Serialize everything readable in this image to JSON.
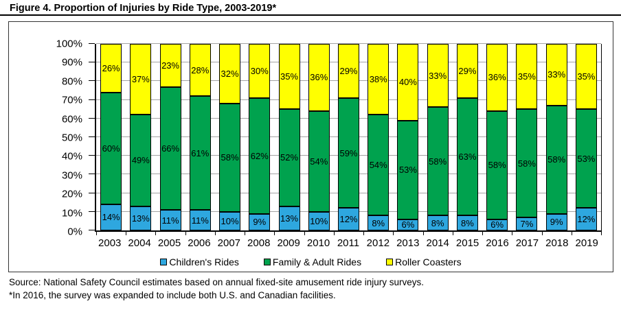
{
  "title": "Figure 4. Proportion of Injuries by Ride Type, 2003-2019*",
  "footer": {
    "source": "Source: National Safety Council estimates based on annual fixed-site amusement ride injury surveys.",
    "footnote": "*In 2016, the survey was expanded to include both U.S. and Canadian facilities."
  },
  "chart_data": {
    "type": "bar",
    "variant": "stacked-100-percent",
    "title": "Figure 4. Proportion of Injuries by Ride Type, 2003-2019*",
    "categories": [
      "2003",
      "2004",
      "2005",
      "2006",
      "2007",
      "2008",
      "2009",
      "2010",
      "2011",
      "2012",
      "2013",
      "2014",
      "2015",
      "2016",
      "2017",
      "2018",
      "2019"
    ],
    "series": [
      {
        "name": "Children's Rides",
        "color": "#2EA7DF",
        "values": [
          14,
          13,
          11,
          11,
          10,
          9,
          13,
          10,
          12,
          8,
          6,
          8,
          8,
          6,
          7,
          9,
          12
        ]
      },
      {
        "name": "Family & Adult Rides",
        "color": "#00A24E",
        "values": [
          60,
          49,
          66,
          61,
          58,
          62,
          52,
          54,
          59,
          54,
          53,
          58,
          63,
          58,
          58,
          58,
          53
        ]
      },
      {
        "name": "Roller Coasters",
        "color": "#FFFF00",
        "values": [
          26,
          37,
          23,
          28,
          32,
          30,
          35,
          36,
          29,
          38,
          40,
          33,
          29,
          36,
          35,
          33,
          35
        ]
      }
    ],
    "xlabel": "",
    "ylabel": "",
    "ylim": [
      0,
      100
    ],
    "yticks": [
      "0%",
      "10%",
      "20%",
      "30%",
      "40%",
      "50%",
      "60%",
      "70%",
      "80%",
      "90%",
      "100%"
    ],
    "grid": true,
    "legend_position": "bottom",
    "bar_border_color": "#000000",
    "gridline_color": "#a3a3a3"
  }
}
